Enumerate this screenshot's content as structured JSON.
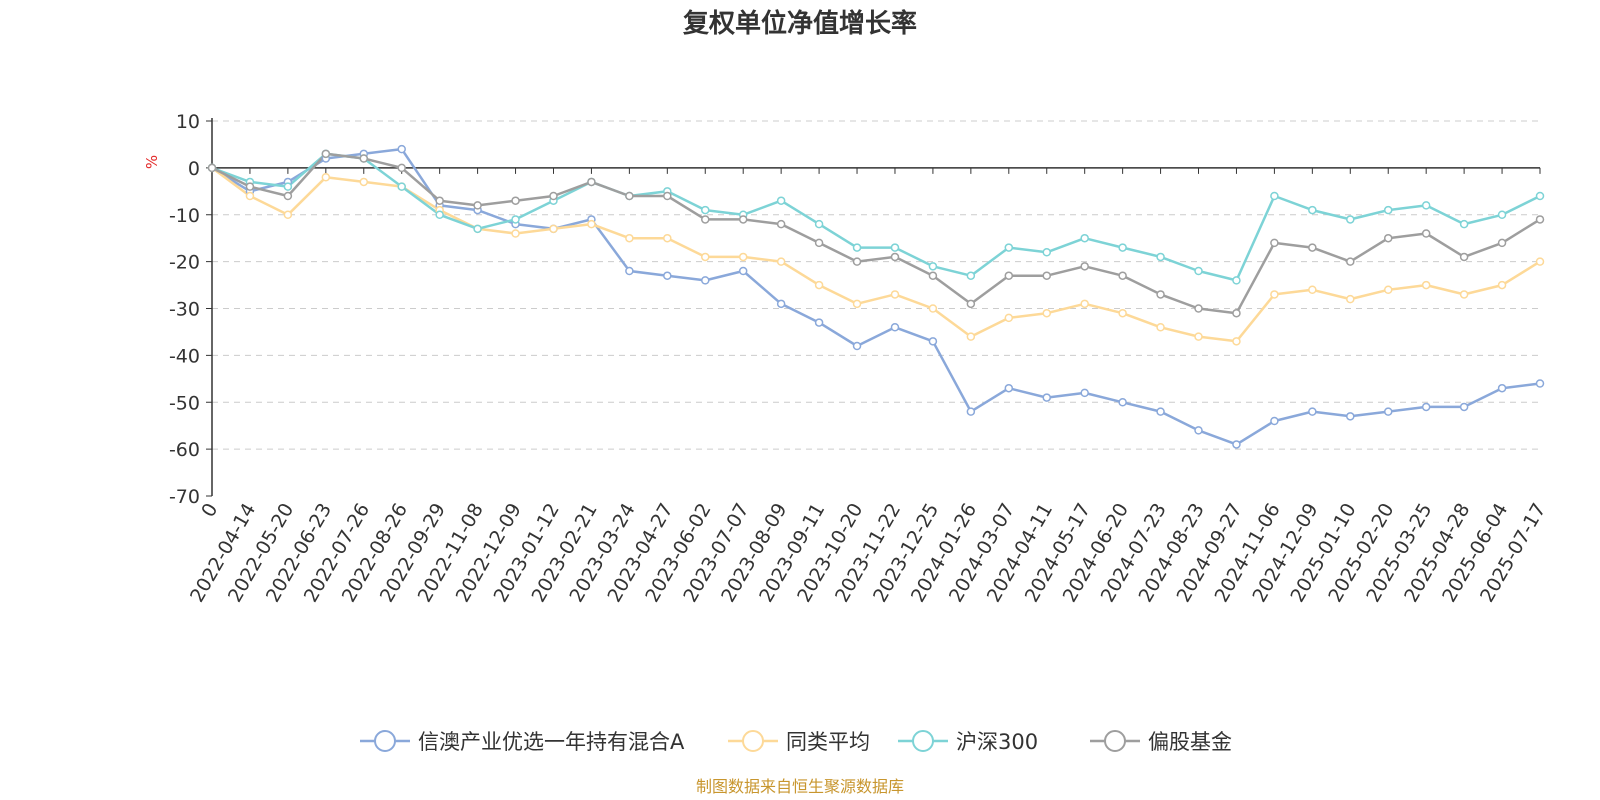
{
  "chart_data": {
    "type": "line",
    "title": "复权单位净值增长率",
    "ylabel": "%",
    "ylim": [
      -70,
      10
    ],
    "yticks": [
      10,
      0,
      -10,
      -20,
      -30,
      -40,
      -50,
      -60,
      -70
    ],
    "xlabel": "",
    "grid": "horizontal dashed",
    "legend_position": "bottom",
    "categories": [
      "0",
      "2022-04-14",
      "2022-05-20",
      "2022-06-23",
      "2022-07-26",
      "2022-08-26",
      "2022-09-29",
      "2022-11-08",
      "2022-12-09",
      "2023-01-12",
      "2023-02-21",
      "2023-03-24",
      "2023-04-27",
      "2023-06-02",
      "2023-07-07",
      "2023-08-09",
      "2023-09-11",
      "2023-10-20",
      "2023-11-22",
      "2023-12-25",
      "2024-01-26",
      "2024-03-07",
      "2024-04-11",
      "2024-05-17",
      "2024-06-20",
      "2024-07-23",
      "2024-08-23",
      "2024-09-27",
      "2024-11-06",
      "2024-12-09",
      "2025-01-10",
      "2025-02-20",
      "2025-03-25",
      "2025-04-28",
      "2025-06-04",
      "2025-07-17"
    ],
    "series": [
      {
        "name": "信澳产业优选一年持有混合A",
        "color": "#8aa8da",
        "values": [
          0,
          -5,
          -3,
          2,
          3,
          4,
          -8,
          -9,
          -12,
          -13,
          -11,
          -22,
          -23,
          -24,
          -22,
          -29,
          -33,
          -38,
          -34,
          -37,
          -52,
          -47,
          -49,
          -48,
          -50,
          -52,
          -56,
          -59,
          -54,
          -52,
          -53,
          -52,
          -51,
          -51,
          -47,
          -46
        ]
      },
      {
        "name": "同类平均",
        "color": "#fdd998",
        "values": [
          0,
          -6,
          -10,
          -2,
          -3,
          -4,
          -9,
          -13,
          -14,
          -13,
          -12,
          -15,
          -15,
          -19,
          -19,
          -20,
          -25,
          -29,
          -27,
          -30,
          -36,
          -32,
          -31,
          -29,
          -31,
          -34,
          -36,
          -37,
          -27,
          -26,
          -28,
          -26,
          -25,
          -27,
          -25,
          -20
        ]
      },
      {
        "name": "沪深300",
        "color": "#7dd3d6",
        "values": [
          0,
          -3,
          -4,
          3,
          2,
          -4,
          -10,
          -13,
          -11,
          -7,
          -3,
          -6,
          -5,
          -9,
          -10,
          -7,
          -12,
          -17,
          -17,
          -21,
          -23,
          -17,
          -18,
          -15,
          -17,
          -19,
          -22,
          -24,
          -6,
          -9,
          -11,
          -9,
          -8,
          -12,
          -10,
          -6
        ]
      },
      {
        "name": "偏股基金",
        "color": "#9e9e9e",
        "values": [
          0,
          -4,
          -6,
          3,
          2,
          0,
          -7,
          -8,
          -7,
          -6,
          -3,
          -6,
          -6,
          -11,
          -11,
          -12,
          -16,
          -20,
          -19,
          -23,
          -29,
          -23,
          -23,
          -21,
          -23,
          -27,
          -30,
          -31,
          -16,
          -17,
          -20,
          -15,
          -14,
          -19,
          -16,
          -11
        ]
      }
    ]
  },
  "footer": {
    "source": "制图数据来自恒生聚源数据库"
  }
}
